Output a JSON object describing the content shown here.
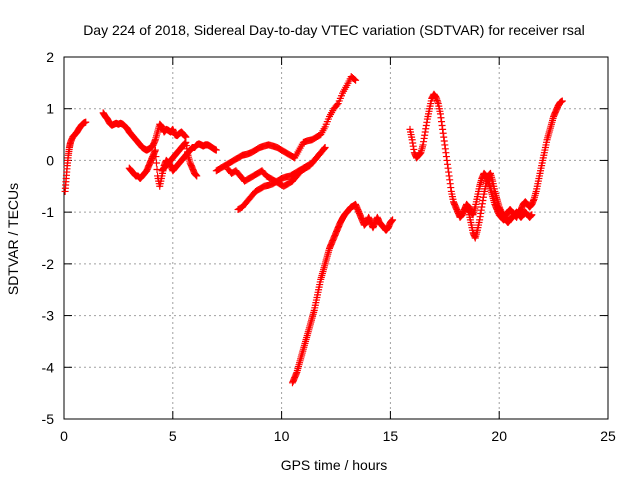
{
  "chart_data": {
    "type": "scatter",
    "title": "Day 224 of 2018, Sidereal Day-to-day VTEC variation (SDTVAR) for receiver rsal",
    "xlabel": "GPS time / hours",
    "ylabel": "SDTVAR / TECUs",
    "xlim": [
      0,
      25
    ],
    "ylim": [
      -5,
      2
    ],
    "xticks": [
      0,
      5,
      10,
      15,
      20,
      25
    ],
    "yticks": [
      -5,
      -4,
      -3,
      -2,
      -1,
      0,
      1,
      2
    ],
    "grid": true,
    "legend": "none",
    "marker": "plus",
    "color": "#ff0000",
    "series": [
      {
        "x": [
          0.05,
          0.1,
          0.15,
          0.2,
          0.25,
          0.3,
          0.4,
          0.5,
          0.6,
          0.7,
          0.8,
          0.9,
          1.0
        ],
        "y": [
          -0.6,
          -0.35,
          -0.1,
          0.1,
          0.25,
          0.35,
          0.45,
          0.5,
          0.55,
          0.62,
          0.68,
          0.72,
          0.74
        ]
      },
      {
        "x": [
          1.8,
          1.9,
          2.0,
          2.1,
          2.2,
          2.3,
          2.4,
          2.5,
          2.6,
          2.7,
          2.8,
          2.9,
          3.0,
          3.1,
          3.2,
          3.3,
          3.4,
          3.5,
          3.6,
          3.7,
          3.8,
          3.9,
          4.0,
          4.1,
          4.2,
          4.3,
          4.4,
          4.5,
          4.6,
          4.7,
          4.8,
          4.9,
          5.0,
          5.1,
          5.2,
          5.3,
          5.4,
          5.5,
          5.6
        ],
        "y": [
          0.92,
          0.85,
          0.8,
          0.72,
          0.68,
          0.7,
          0.72,
          0.7,
          0.72,
          0.7,
          0.66,
          0.62,
          0.55,
          0.5,
          0.45,
          0.4,
          0.35,
          0.3,
          0.25,
          0.22,
          0.2,
          0.22,
          0.25,
          0.3,
          0.4,
          0.55,
          0.7,
          0.65,
          0.55,
          0.6,
          0.58,
          0.55,
          0.6,
          0.5,
          0.48,
          0.52,
          0.55,
          0.5,
          0.45
        ]
      },
      {
        "x": [
          3.0,
          3.1,
          3.2,
          3.3,
          3.4,
          3.5,
          3.6,
          3.7,
          3.8,
          3.9,
          4.0,
          4.1,
          4.2,
          4.3,
          4.4,
          4.5,
          4.6,
          4.7,
          4.8,
          4.9,
          5.0,
          5.1,
          5.2,
          5.3,
          5.4,
          5.5,
          5.6,
          5.7,
          5.8,
          5.9,
          6.0,
          6.1,
          6.2,
          6.3,
          6.4,
          6.5,
          6.6,
          6.7,
          6.8,
          6.9,
          7.0
        ],
        "y": [
          -0.15,
          -0.2,
          -0.25,
          -0.3,
          -0.3,
          -0.35,
          -0.3,
          -0.25,
          -0.2,
          -0.1,
          0.0,
          0.1,
          0.2,
          -0.3,
          -0.5,
          -0.3,
          -0.1,
          0.0,
          -0.05,
          -0.1,
          -0.2,
          -0.15,
          -0.1,
          -0.05,
          0.0,
          0.05,
          0.1,
          0.15,
          0.2,
          0.25,
          0.25,
          0.3,
          0.32,
          0.3,
          0.28,
          0.3,
          0.3,
          0.28,
          0.25,
          0.22,
          0.2
        ]
      },
      {
        "x": [
          4.5,
          4.6,
          4.7,
          4.8,
          4.9,
          5.0,
          5.1,
          5.2,
          5.3,
          5.4,
          5.5,
          5.6,
          5.7,
          5.8,
          5.9,
          6.0,
          6.1
        ],
        "y": [
          -0.2,
          -0.15,
          -0.1,
          -0.05,
          0.0,
          0.05,
          0.1,
          0.15,
          0.2,
          0.25,
          0.3,
          0.35,
          0.1,
          -0.05,
          -0.15,
          -0.25,
          -0.3
        ]
      },
      {
        "x": [
          7.0,
          7.2,
          7.4,
          7.6,
          7.8,
          8.0,
          8.2,
          8.4,
          8.6,
          8.8,
          9.0,
          9.2,
          9.4,
          9.6,
          9.8,
          10.0,
          10.2,
          10.4,
          10.6,
          10.8,
          11.0,
          11.2,
          11.4,
          11.6,
          11.8,
          12.0,
          12.2,
          12.4,
          12.6,
          12.8,
          13.0,
          13.2,
          13.4
        ],
        "y": [
          -0.2,
          -0.15,
          -0.1,
          -0.05,
          0.0,
          0.05,
          0.1,
          0.12,
          0.15,
          0.2,
          0.25,
          0.28,
          0.3,
          0.28,
          0.25,
          0.2,
          0.15,
          0.1,
          0.05,
          0.2,
          0.35,
          0.38,
          0.4,
          0.45,
          0.5,
          0.65,
          0.85,
          1.0,
          1.1,
          1.3,
          1.45,
          1.62,
          1.55
        ]
      },
      {
        "x": [
          7.5,
          7.7,
          7.9,
          8.1,
          8.3,
          8.5,
          8.7,
          8.9,
          9.1,
          9.3,
          9.5,
          9.7,
          9.9,
          10.1,
          10.3,
          10.5,
          10.7,
          10.9,
          11.1,
          11.3,
          11.5,
          11.7,
          11.9,
          12.0
        ],
        "y": [
          -0.15,
          -0.25,
          -0.2,
          -0.3,
          -0.4,
          -0.35,
          -0.3,
          -0.25,
          -0.2,
          -0.3,
          -0.35,
          -0.4,
          -0.45,
          -0.5,
          -0.45,
          -0.4,
          -0.3,
          -0.2,
          -0.15,
          -0.1,
          0.0,
          0.1,
          0.2,
          0.25
        ]
      },
      {
        "x": [
          8.0,
          8.2,
          8.4,
          8.6,
          8.8,
          9.0,
          9.2,
          9.4,
          9.6,
          9.8,
          10.0,
          10.2,
          10.4,
          10.6,
          10.8,
          11.0,
          11.2,
          11.4,
          11.6,
          11.8
        ],
        "y": [
          -0.95,
          -0.9,
          -0.8,
          -0.7,
          -0.6,
          -0.55,
          -0.5,
          -0.48,
          -0.45,
          -0.4,
          -0.35,
          -0.32,
          -0.3,
          -0.25,
          -0.2,
          -0.15,
          -0.1,
          -0.05,
          0.05,
          0.15
        ]
      },
      {
        "x": [
          10.5,
          10.6,
          10.7,
          10.8,
          10.9,
          11.0,
          11.1,
          11.2,
          11.3,
          11.4,
          11.5,
          11.6,
          11.7,
          11.8,
          11.9,
          12.0,
          12.1,
          12.2,
          12.3,
          12.4,
          12.5,
          12.6,
          12.7,
          12.8,
          12.9,
          13.0,
          13.1,
          13.2,
          13.3,
          13.4,
          13.5,
          13.6,
          13.7,
          13.8,
          13.9,
          14.0,
          14.1,
          14.2,
          14.3,
          14.4,
          14.5,
          14.6,
          14.7,
          14.8,
          14.9,
          15.0,
          15.1
        ],
        "y": [
          -4.3,
          -4.2,
          -4.1,
          -3.95,
          -3.8,
          -3.65,
          -3.5,
          -3.35,
          -3.2,
          -3.05,
          -2.9,
          -2.7,
          -2.5,
          -2.3,
          -2.15,
          -2.0,
          -1.85,
          -1.7,
          -1.6,
          -1.5,
          -1.4,
          -1.3,
          -1.2,
          -1.12,
          -1.05,
          -1.0,
          -0.95,
          -0.9,
          -0.88,
          -0.85,
          -0.95,
          -1.05,
          -1.15,
          -1.25,
          -1.2,
          -1.1,
          -1.2,
          -1.3,
          -1.2,
          -1.1,
          -1.2,
          -1.25,
          -1.3,
          -1.35,
          -1.3,
          -1.2,
          -1.15
        ]
      },
      {
        "x": [
          15.9,
          16.0,
          16.1,
          16.2,
          16.3,
          16.4,
          16.5,
          16.6,
          16.7,
          16.8,
          16.9,
          17.0,
          17.1,
          17.2,
          17.3,
          17.4,
          17.5,
          17.6,
          17.7,
          17.8,
          17.9,
          18.0,
          18.1,
          18.2,
          18.3,
          18.4,
          18.5,
          18.6,
          18.7,
          18.8,
          18.9,
          19.0,
          19.1,
          19.2,
          19.3,
          19.4,
          19.5,
          19.6,
          19.7,
          19.8,
          19.9,
          20.0,
          20.1,
          20.2,
          20.3,
          20.4,
          20.5,
          20.6,
          20.7,
          20.8,
          20.9,
          21.0,
          21.1,
          21.2,
          21.3,
          21.4,
          21.5,
          21.6,
          21.7,
          21.8,
          21.9,
          22.0,
          22.1,
          22.2,
          22.3,
          22.4,
          22.5,
          22.6,
          22.7,
          22.8,
          22.9
        ],
        "y": [
          0.6,
          0.4,
          0.15,
          0.05,
          0.1,
          0.15,
          0.3,
          0.55,
          0.8,
          1.0,
          1.2,
          1.28,
          1.22,
          1.1,
          0.9,
          0.6,
          0.3,
          0.0,
          -0.3,
          -0.6,
          -0.8,
          -0.9,
          -1.0,
          -1.1,
          -1.05,
          -0.95,
          -0.85,
          -0.9,
          -1.0,
          -1.05,
          -0.9,
          -0.7,
          -0.5,
          -0.35,
          -0.25,
          -0.3,
          -0.4,
          -0.55,
          -0.7,
          -0.85,
          -0.95,
          -1.05,
          -1.1,
          -1.15,
          -1.1,
          -1.0,
          -0.95,
          -1.0,
          -1.05,
          -1.1,
          -1.0,
          -0.95,
          -0.85,
          -0.8,
          -0.85,
          -0.9,
          -0.85,
          -0.75,
          -0.6,
          -0.4,
          -0.2,
          0.0,
          0.2,
          0.4,
          0.55,
          0.7,
          0.85,
          0.95,
          1.05,
          1.12,
          1.15
        ]
      },
      {
        "x": [
          18.4,
          18.5,
          18.6,
          18.7,
          18.8,
          18.9,
          19.0,
          19.1,
          19.2,
          19.3,
          19.4,
          19.5,
          19.6,
          19.7,
          19.8,
          19.9,
          20.0,
          20.1,
          20.2,
          20.3,
          20.4,
          20.5,
          20.6,
          20.7,
          20.8,
          20.9,
          21.0,
          21.1,
          21.2,
          21.3,
          21.4,
          21.5
        ],
        "y": [
          -0.95,
          -0.9,
          -1.0,
          -1.2,
          -1.4,
          -1.5,
          -1.35,
          -1.15,
          -0.9,
          -0.65,
          -0.45,
          -0.3,
          -0.25,
          -0.4,
          -0.6,
          -0.75,
          -0.9,
          -1.0,
          -1.05,
          -1.15,
          -1.2,
          -1.15,
          -1.1,
          -1.05,
          -1.0,
          -1.05,
          -1.1,
          -1.05,
          -1.0,
          -1.05,
          -1.1,
          -1.05
        ]
      }
    ]
  }
}
